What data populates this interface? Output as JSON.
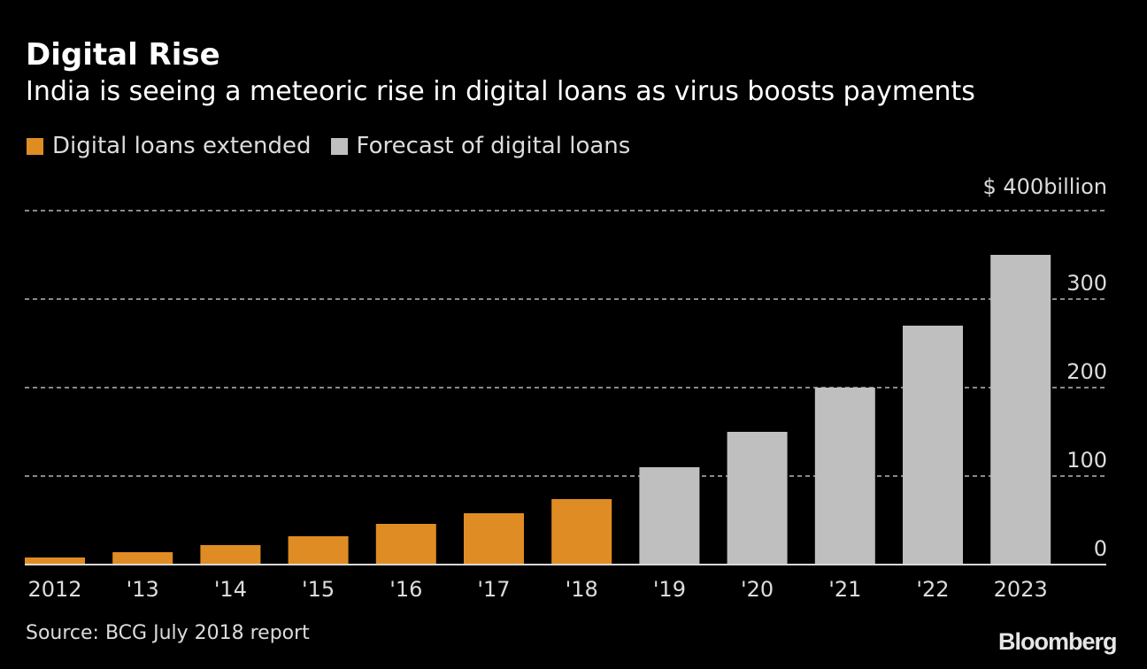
{
  "chart_data": {
    "type": "bar",
    "title": "Digital Rise",
    "subtitle": "India is seeing a meteoric rise in digital loans as virus boosts payments",
    "xlabel": "",
    "ylabel": "",
    "y_unit_label": "$ 400billion",
    "ylim": [
      0,
      400
    ],
    "yticks": [
      0,
      100,
      200,
      300,
      400
    ],
    "ytick_labels": [
      "0",
      "100",
      "200",
      "300",
      "$ 400billion"
    ],
    "grid": true,
    "legend_placement": "top-left",
    "categories": [
      "2012",
      "'13",
      "'14",
      "'15",
      "'16",
      "'17",
      "'18",
      "'19",
      "'20",
      "'21",
      "'22",
      "2023"
    ],
    "series": [
      {
        "name": "Digital loans extended",
        "color": "#e08c24",
        "values": [
          8,
          14,
          22,
          32,
          46,
          58,
          74,
          null,
          null,
          null,
          null,
          null
        ]
      },
      {
        "name": "Forecast of digital loans",
        "color": "#bfbfbf",
        "values": [
          null,
          null,
          null,
          null,
          null,
          null,
          null,
          110,
          150,
          200,
          270,
          350
        ]
      }
    ],
    "source": "Source: BCG July 2018 report"
  },
  "branding": {
    "logo": "Bloomberg"
  },
  "colors": {
    "background": "#000000",
    "actual": "#e08c24",
    "forecast": "#bfbfbf",
    "grid": "#8a8a8a",
    "axis": "#d9d9d9"
  }
}
